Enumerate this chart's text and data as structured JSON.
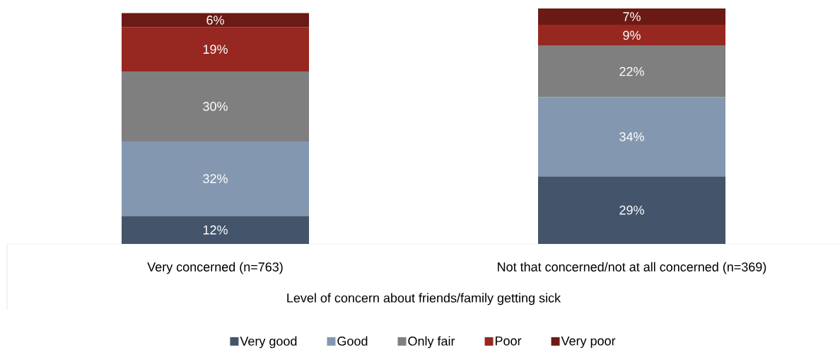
{
  "chart_data": {
    "type": "bar",
    "stacked": true,
    "xlabel": "Level of concern about friends/family getting sick",
    "legend": "bottom",
    "categories": [
      "Very concerned (n=763)",
      "Not that concerned/not at all concerned (n=369)"
    ],
    "series": [
      {
        "name": "Very good",
        "color": "#44546a",
        "values": [
          12,
          29
        ],
        "value_labels": [
          "12%",
          "29%"
        ]
      },
      {
        "name": "Good",
        "color": "#8497b0",
        "values": [
          32,
          34
        ],
        "value_labels": [
          "32%",
          "34%"
        ]
      },
      {
        "name": "Only fair",
        "color": "#7f7f7f",
        "values": [
          30,
          22
        ],
        "value_labels": [
          "30%",
          "22%"
        ]
      },
      {
        "name": "Poor",
        "color": "#962821",
        "values": [
          19,
          9
        ],
        "value_labels": [
          "19%",
          "9%"
        ]
      },
      {
        "name": "Very poor",
        "color": "#6b1a15",
        "values": [
          6,
          7
        ],
        "value_labels": [
          "6%",
          "7%"
        ]
      }
    ]
  }
}
